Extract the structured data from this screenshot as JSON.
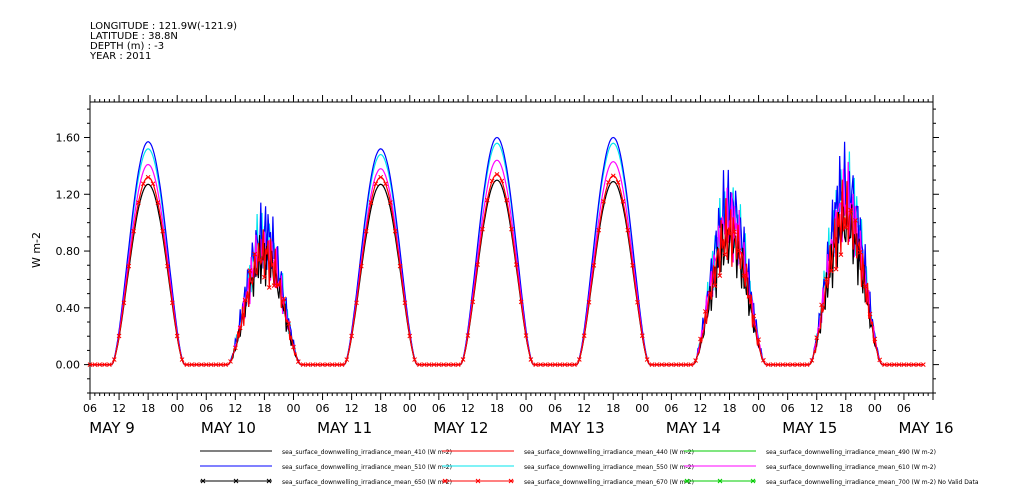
{
  "header": {
    "longitude": "LONGITUDE : 121.9W(-121.9)",
    "latitude": "LATITUDE : 38.8N",
    "depth": "DEPTH (m) : -3",
    "year": "YEAR : 2011"
  },
  "chart_data": {
    "type": "line",
    "ylabel": "W m-2",
    "ylim": [
      -0.2,
      1.85
    ],
    "yticks": [
      0.0,
      0.4,
      0.8,
      1.2,
      1.6
    ],
    "ytick_labels": [
      "0.00",
      "0.40",
      "0.80",
      "1.20",
      "1.60"
    ],
    "xlim_hours": [
      0,
      174
    ],
    "hour_ticks": [
      "06",
      "12",
      "18",
      "00",
      "06",
      "12",
      "18",
      "00",
      "06",
      "12",
      "18",
      "00",
      "06",
      "12",
      "18",
      "00",
      "06",
      "12",
      "18",
      "00",
      "06",
      "12",
      "18",
      "00",
      "06",
      "12",
      "18",
      "00",
      "06"
    ],
    "day_labels": [
      "MAY  9",
      "MAY 10",
      "MAY 11",
      "MAY 12",
      "MAY 13",
      "MAY 14",
      "MAY 15",
      "MAY 16"
    ],
    "grid": false,
    "legend_position": "bottom",
    "days": [
      {
        "noon_hour": 12,
        "peak_410": 1.27,
        "peak_510": 1.57,
        "peak_550": 1.52,
        "peak_610": 1.41,
        "peak_670": 1.32,
        "noisy": false
      },
      {
        "noon_hour": 36,
        "peak_410": 0.95,
        "peak_510": 1.2,
        "peak_550": 1.15,
        "peak_610": 1.05,
        "peak_670": 1.0,
        "noisy": true
      },
      {
        "noon_hour": 60,
        "peak_410": 1.27,
        "peak_510": 1.52,
        "peak_550": 1.48,
        "peak_610": 1.38,
        "peak_670": 1.32,
        "noisy": false
      },
      {
        "noon_hour": 84,
        "peak_410": 1.3,
        "peak_510": 1.6,
        "peak_550": 1.56,
        "peak_610": 1.44,
        "peak_670": 1.34,
        "noisy": false
      },
      {
        "noon_hour": 108,
        "peak_410": 1.29,
        "peak_510": 1.6,
        "peak_550": 1.56,
        "peak_610": 1.43,
        "peak_670": 1.33,
        "noisy": false
      },
      {
        "noon_hour": 132,
        "peak_410": 1.1,
        "peak_510": 1.45,
        "peak_550": 1.4,
        "peak_610": 1.3,
        "peak_670": 1.2,
        "noisy": true
      },
      {
        "noon_hour": 156,
        "peak_410": 1.25,
        "peak_510": 1.62,
        "peak_550": 1.58,
        "peak_610": 1.45,
        "peak_670": 1.35,
        "noisy": true
      }
    ],
    "series": [
      {
        "name": "sea_surface_downwelling_irradiance_mean_410 (W m-2)",
        "color": "#000000",
        "marker": "none"
      },
      {
        "name": "sea_surface_downwelling_irradiance_mean_440 (W m-2)",
        "color": "#ff0000",
        "marker": "none"
      },
      {
        "name": "sea_surface_downwelling_irradiance_mean_490 (W m-2)",
        "color": "#00cc00",
        "marker": "none"
      },
      {
        "name": "sea_surface_downwelling_irradiance_mean_510 (W m-2)",
        "color": "#0000ff",
        "marker": "none"
      },
      {
        "name": "sea_surface_downwelling_irradiance_mean_550 (W m-2)",
        "color": "#00e5ee",
        "marker": "none"
      },
      {
        "name": "sea_surface_downwelling_irradiance_mean_610 (W m-2)",
        "color": "#ff00ff",
        "marker": "none"
      },
      {
        "name": "sea_surface_downwelling_irradiance_mean_650 (W m-2)",
        "color": "#000000",
        "marker": "x"
      },
      {
        "name": "sea_surface_downwelling_irradiance_mean_670 (W m-2)",
        "color": "#ff0000",
        "marker": "x"
      },
      {
        "name": "sea_surface_downwelling_irradiance_mean_700 (W m-2) No Valid Data",
        "color": "#00cc00",
        "marker": "x"
      }
    ]
  }
}
